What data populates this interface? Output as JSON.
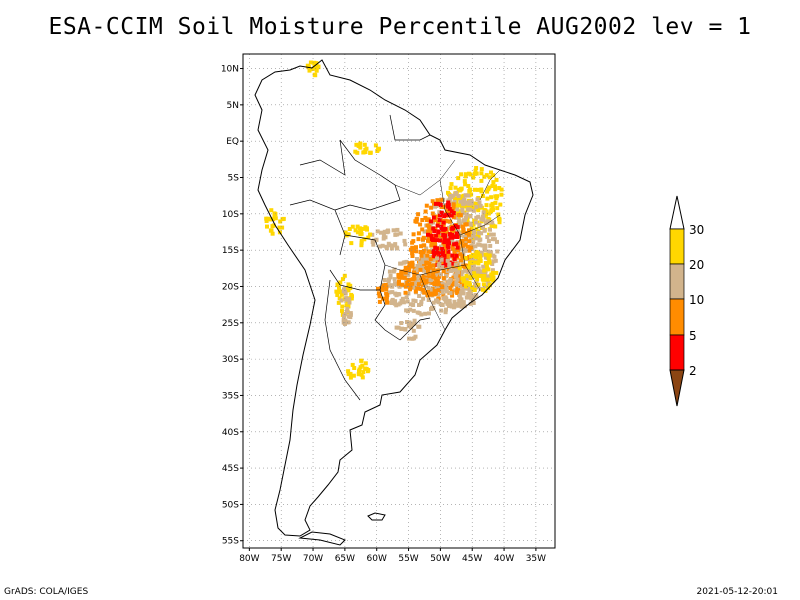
{
  "title": "ESA-CCIM Soil Moisture Percentile AUG2002 lev = 1",
  "footer_left": "GrADS: COLA/IGES",
  "footer_right": "2021-05-12-20:01",
  "map": {
    "lon_range": [
      -81,
      -32
    ],
    "lat_range": [
      -56,
      12
    ],
    "lat_ticks": [
      {
        "lat": 10,
        "label": "10N"
      },
      {
        "lat": 5,
        "label": "5N"
      },
      {
        "lat": 0,
        "label": "EQ"
      },
      {
        "lat": -5,
        "label": "5S"
      },
      {
        "lat": -10,
        "label": "10S"
      },
      {
        "lat": -15,
        "label": "15S"
      },
      {
        "lat": -20,
        "label": "20S"
      },
      {
        "lat": -25,
        "label": "25S"
      },
      {
        "lat": -30,
        "label": "30S"
      },
      {
        "lat": -35,
        "label": "35S"
      },
      {
        "lat": -40,
        "label": "40S"
      },
      {
        "lat": -45,
        "label": "45S"
      },
      {
        "lat": -50,
        "label": "50S"
      },
      {
        "lat": -55,
        "label": "55S"
      }
    ],
    "lon_ticks": [
      {
        "lon": -80,
        "label": "80W"
      },
      {
        "lon": -75,
        "label": "75W"
      },
      {
        "lon": -70,
        "label": "70W"
      },
      {
        "lon": -65,
        "label": "65W"
      },
      {
        "lon": -60,
        "label": "60W"
      },
      {
        "lon": -55,
        "label": "55W"
      },
      {
        "lon": -50,
        "label": "50W"
      },
      {
        "lon": -45,
        "label": "45W"
      },
      {
        "lon": -40,
        "label": "40W"
      },
      {
        "lon": -35,
        "label": "35W"
      }
    ],
    "gridlines": true
  },
  "colorbar": {
    "levels": [
      "2",
      "5",
      "10",
      "20",
      "30"
    ],
    "colors": {
      "below_2": "#8b4513",
      "2_5": "#ff0000",
      "5_10": "#ff8c00",
      "10_20": "#d2b48c",
      "20_30": "#ffd700",
      "above_30": "#ffffff"
    }
  },
  "data_regions": [
    {
      "category": "20_30",
      "lon": -44.5,
      "lat": -8.5,
      "rx": 4.5,
      "ry": 5
    },
    {
      "category": "10_20",
      "lon": -47,
      "lat": -15,
      "rx": 6,
      "ry": 8
    },
    {
      "category": "5_10",
      "lon": -50,
      "lat": -15,
      "rx": 5,
      "ry": 7
    },
    {
      "category": "2_5",
      "lon": -49.5,
      "lat": -13,
      "rx": 2.5,
      "ry": 5
    },
    {
      "category": "10_20",
      "lon": -52,
      "lat": -20,
      "rx": 7,
      "ry": 4
    },
    {
      "category": "5_10",
      "lon": -53,
      "lat": -19,
      "rx": 4,
      "ry": 2.5
    },
    {
      "category": "20_30",
      "lon": -44,
      "lat": -18,
      "rx": 3,
      "ry": 3
    },
    {
      "category": "10_20",
      "lon": -58,
      "lat": -13.5,
      "rx": 3,
      "ry": 1.5
    },
    {
      "category": "20_30",
      "lon": -63,
      "lat": -13,
      "rx": 2,
      "ry": 1.5
    },
    {
      "category": "20_30",
      "lon": -76,
      "lat": -11,
      "rx": 1.5,
      "ry": 2
    },
    {
      "category": "20_30",
      "lon": -65,
      "lat": -21,
      "rx": 1.5,
      "ry": 3
    },
    {
      "category": "10_20",
      "lon": -65,
      "lat": -23,
      "rx": 1,
      "ry": 3
    },
    {
      "category": "20_30",
      "lon": -63,
      "lat": -31.5,
      "rx": 2,
      "ry": 1.5
    },
    {
      "category": "20_30",
      "lon": -70,
      "lat": 10,
      "rx": 1,
      "ry": 1
    },
    {
      "category": "20_30",
      "lon": -62,
      "lat": -1,
      "rx": 2.5,
      "ry": 0.8
    },
    {
      "category": "10_20",
      "lon": -55,
      "lat": -26,
      "rx": 2,
      "ry": 1.5
    },
    {
      "category": "5_10",
      "lon": -59,
      "lat": -21,
      "rx": 1.5,
      "ry": 1.5
    }
  ]
}
